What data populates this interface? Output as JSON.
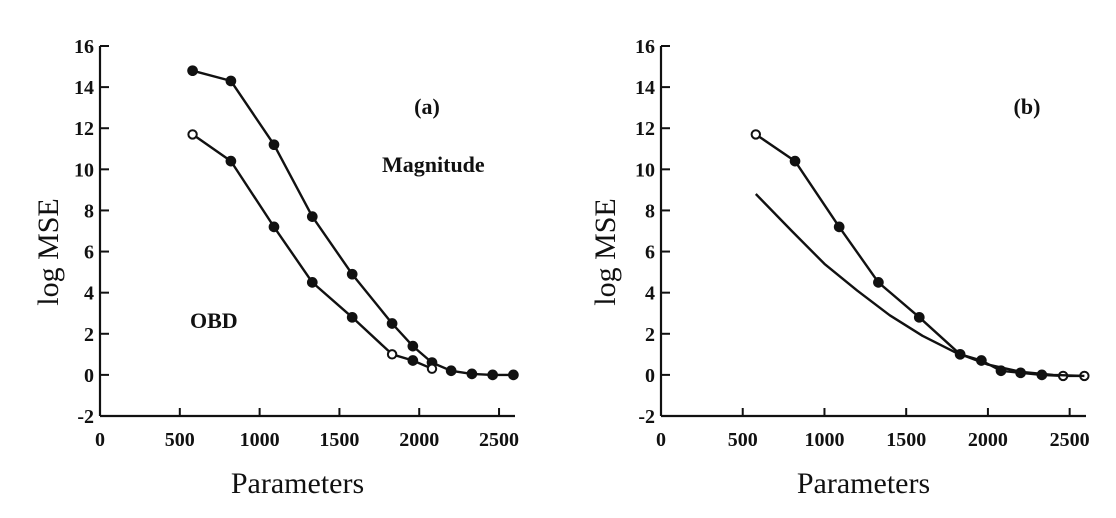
{
  "chart_data": [
    {
      "type": "line",
      "panel_label": "(a)",
      "xlabel": "Parameters",
      "ylabel": "log MSE",
      "xlim": [
        0,
        2600
      ],
      "ylim": [
        -2,
        16
      ],
      "xticks": [
        0,
        500,
        1000,
        1500,
        2000,
        2500
      ],
      "yticks": [
        -2,
        0,
        2,
        4,
        6,
        8,
        10,
        12,
        14,
        16
      ],
      "annotations": [
        {
          "text": "Magnitude",
          "series": "Magnitude"
        },
        {
          "text": "OBD",
          "series": "OBD"
        }
      ],
      "series": [
        {
          "name": "Magnitude",
          "x": [
            580,
            820,
            1090,
            1330,
            1580,
            1830,
            1960,
            2080,
            2200,
            2330,
            2460,
            2590
          ],
          "y": [
            14.8,
            14.3,
            11.2,
            7.7,
            4.9,
            2.5,
            1.4,
            0.6,
            0.2,
            0.05,
            0.0,
            0.0
          ],
          "markers": [
            "filled",
            "filled",
            "filled",
            "filled",
            "filled",
            "filled",
            "filled",
            "filled",
            "filled",
            "filled",
            "filled",
            "filled"
          ]
        },
        {
          "name": "OBD",
          "x": [
            580,
            820,
            1090,
            1330,
            1580,
            1830,
            1960,
            2080
          ],
          "y": [
            11.7,
            10.4,
            7.2,
            4.5,
            2.8,
            1.0,
            0.7,
            0.3
          ],
          "markers": [
            "open",
            "filled",
            "filled",
            "filled",
            "filled",
            "open",
            "filled",
            "open"
          ]
        }
      ]
    },
    {
      "type": "line",
      "panel_label": "(b)",
      "xlabel": "Parameters",
      "ylabel": "log MSE",
      "xlim": [
        0,
        2600
      ],
      "ylim": [
        -2,
        16
      ],
      "xticks": [
        0,
        500,
        1000,
        1500,
        2000,
        2500
      ],
      "yticks": [
        -2,
        0,
        2,
        4,
        6,
        8,
        10,
        12,
        14,
        16
      ],
      "series": [
        {
          "name": "OBD",
          "x": [
            580,
            820,
            1090,
            1330,
            1580,
            1830,
            1960,
            2080,
            2200,
            2330,
            2460,
            2590
          ],
          "y": [
            11.7,
            10.4,
            7.2,
            4.5,
            2.8,
            1.0,
            0.7,
            0.2,
            0.1,
            0.0,
            -0.05,
            -0.05
          ],
          "markers": [
            "open",
            "filled",
            "filled",
            "filled",
            "filled",
            "filled",
            "filled",
            "filled",
            "filled",
            "filled",
            "open",
            "open"
          ]
        },
        {
          "name": "Curve",
          "x": [
            580,
            800,
            1000,
            1200,
            1400,
            1600,
            1800,
            2000,
            2200,
            2400,
            2590
          ],
          "y": [
            8.8,
            7.0,
            5.4,
            4.1,
            2.9,
            1.9,
            1.1,
            0.5,
            0.15,
            0.0,
            -0.05
          ],
          "markers": []
        }
      ]
    }
  ]
}
